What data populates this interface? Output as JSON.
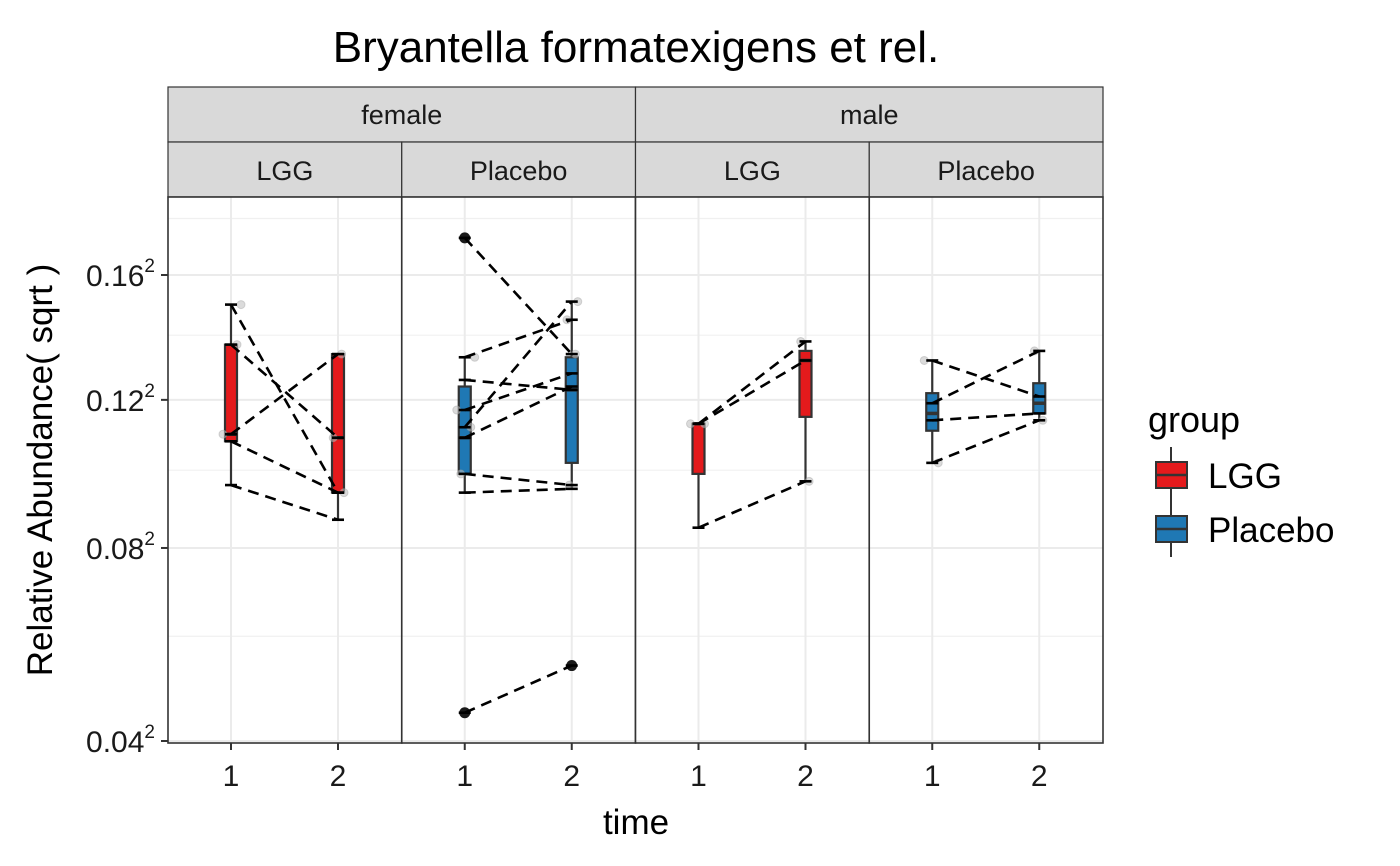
{
  "chart_data": {
    "type": "box",
    "title": "Bryantella formatexigens et rel.",
    "xlabel": "time",
    "ylabel": "Relative Abundance( sqrt )",
    "y_scale": "sqrt",
    "ylim": [
      0.04,
      0.18
    ],
    "y_ticks": [
      {
        "value": 0.04,
        "base": "0.04",
        "exp": "2"
      },
      {
        "value": 0.08,
        "base": "0.08",
        "exp": "2"
      },
      {
        "value": 0.12,
        "base": "0.12",
        "exp": "2"
      },
      {
        "value": 0.16,
        "base": "0.16",
        "exp": "2"
      }
    ],
    "x_categories": [
      "1",
      "2"
    ],
    "facet_rows_label": [
      "female",
      "male"
    ],
    "legend": {
      "title": "group",
      "position": "right",
      "items": [
        {
          "label": "LGG",
          "color": "#e41a1c"
        },
        {
          "label": "Placebo",
          "color": "#1f78b4"
        }
      ]
    },
    "grid": true,
    "panels": [
      {
        "sex": "female",
        "group": "LGG",
        "color": "#e41a1c",
        "boxes": [
          {
            "time": "1",
            "min": 0.096,
            "q1": 0.108,
            "median": 0.11,
            "q3": 0.137,
            "max": 0.15,
            "outliers": []
          },
          {
            "time": "2",
            "min": 0.087,
            "q1": 0.094,
            "median": 0.109,
            "q3": 0.134,
            "max": 0.134,
            "outliers": []
          }
        ],
        "pairs": [
          [
            0.15,
            0.094
          ],
          [
            0.137,
            0.109
          ],
          [
            0.11,
            0.134
          ],
          [
            0.108,
            0.094
          ],
          [
            0.096,
            0.087
          ]
        ],
        "jitter": [
          [
            0.11,
            0.109
          ],
          [
            0.137,
            0.134
          ],
          [
            0.15,
            0.094
          ]
        ]
      },
      {
        "sex": "female",
        "group": "Placebo",
        "color": "#1f78b4",
        "boxes": [
          {
            "time": "1",
            "min": 0.094,
            "q1": 0.099,
            "median": 0.109,
            "q3": 0.124,
            "max": 0.133,
            "outliers": [
              0.173,
              0.045
            ]
          },
          {
            "time": "2",
            "min": 0.095,
            "q1": 0.102,
            "median": 0.123,
            "q3": 0.133,
            "max": 0.151,
            "outliers": [
              0.054
            ]
          }
        ],
        "pairs": [
          [
            0.173,
            0.134
          ],
          [
            0.133,
            0.145
          ],
          [
            0.126,
            0.123
          ],
          [
            0.117,
            0.128
          ],
          [
            0.112,
            0.151
          ],
          [
            0.109,
            0.124
          ],
          [
            0.099,
            0.096
          ],
          [
            0.094,
            0.095
          ],
          [
            0.045,
            0.054
          ]
        ],
        "jitter": [
          [
            0.117,
            0.145
          ],
          [
            0.112,
            0.134
          ],
          [
            0.133,
            0.151
          ],
          [
            0.099,
            0.096
          ]
        ]
      },
      {
        "sex": "male",
        "group": "LGG",
        "color": "#e41a1c",
        "boxes": [
          {
            "time": "1",
            "min": 0.085,
            "q1": 0.099,
            "median": 0.113,
            "q3": 0.113,
            "max": 0.113,
            "outliers": []
          },
          {
            "time": "2",
            "min": 0.097,
            "q1": 0.115,
            "median": 0.132,
            "q3": 0.135,
            "max": 0.138,
            "outliers": []
          }
        ],
        "pairs": [
          [
            0.113,
            0.138
          ],
          [
            0.113,
            0.132
          ],
          [
            0.085,
            0.097
          ]
        ],
        "jitter": [
          [
            0.113,
            0.138
          ],
          [
            0.113,
            0.097
          ]
        ]
      },
      {
        "sex": "male",
        "group": "Placebo",
        "color": "#1f78b4",
        "boxes": [
          {
            "time": "1",
            "min": 0.102,
            "q1": 0.111,
            "median": 0.116,
            "q3": 0.122,
            "max": 0.132,
            "outliers": []
          },
          {
            "time": "2",
            "min": 0.114,
            "q1": 0.116,
            "median": 0.119,
            "q3": 0.125,
            "max": 0.135,
            "outliers": []
          }
        ],
        "pairs": [
          [
            0.132,
            0.121
          ],
          [
            0.119,
            0.135
          ],
          [
            0.114,
            0.116
          ],
          [
            0.102,
            0.114
          ]
        ],
        "jitter": [
          [
            0.132,
            0.135
          ],
          [
            0.102,
            0.114
          ]
        ]
      }
    ]
  }
}
